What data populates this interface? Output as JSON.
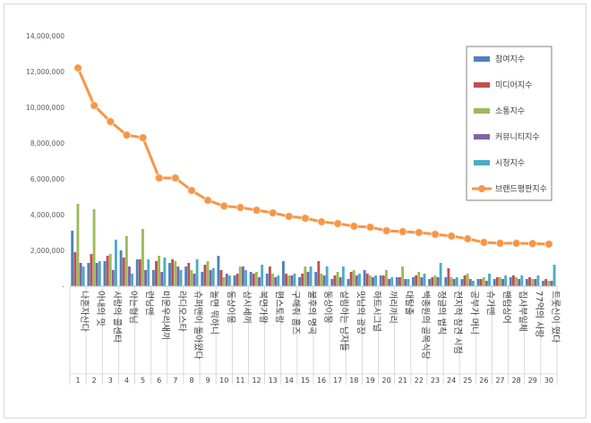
{
  "chart_data": {
    "type": "bar",
    "title": "",
    "xlabel": "",
    "ylabel": "",
    "ylim": [
      0,
      14000000
    ],
    "y_ticks": [
      "-",
      "2,000,000",
      "4,000,000",
      "6,000,000",
      "8,000,000",
      "10,000,000",
      "12,000,000",
      "14,000,000"
    ],
    "grid": false,
    "legend_position": "top-right",
    "index_labels": [
      "1",
      "2",
      "3",
      "4",
      "5",
      "6",
      "7",
      "8",
      "9",
      "10",
      "11",
      "12",
      "13",
      "14",
      "15",
      "16",
      "17",
      "18",
      "19",
      "20",
      "21",
      "22",
      "23",
      "24",
      "25",
      "26",
      "27",
      "28",
      "29",
      "30"
    ],
    "categories": [
      "나혼자산다",
      "아내의 맛",
      "사랑의 콜센타",
      "아는형님",
      "런닝맨",
      "미운우리새끼",
      "라디오스타",
      "슈퍼맨이 돌아왔다",
      "놀면 뭐하니",
      "동상이몽",
      "삼시세끼",
      "복면가왕",
      "편스토랑",
      "구해줘 홈즈",
      "불후의 명곡",
      "동상이몽",
      "살림하는 남자들",
      "맛남의 광장",
      "하트시그널",
      "끼리끼리",
      "대탈출",
      "백종원의 골목식당",
      "정글의 법칙",
      "전지적 참견 시점",
      "공부가 머니",
      "슈가맨",
      "팬텀싱어",
      "집사부일체",
      "77억의 사랑",
      "트롯신이 떴다"
    ],
    "series": [
      {
        "name": "참여지수",
        "color": "#4f81bd",
        "type": "bar",
        "values": [
          3100000,
          1300000,
          1400000,
          2000000,
          1500000,
          900000,
          1300000,
          1100000,
          800000,
          1700000,
          600000,
          800000,
          700000,
          1400000,
          500000,
          800000,
          400000,
          400000,
          900000,
          600000,
          500000,
          500000,
          400000,
          500000,
          400000,
          400000,
          400000,
          500000,
          400000,
          300000
        ]
      },
      {
        "name": "미디어지수",
        "color": "#c0504d",
        "type": "bar",
        "values": [
          1900000,
          1800000,
          1700000,
          1600000,
          1500000,
          1400000,
          1500000,
          1300000,
          1200000,
          900000,
          700000,
          700000,
          1100000,
          700000,
          700000,
          1400000,
          600000,
          800000,
          700000,
          600000,
          500000,
          600000,
          500000,
          1000000,
          600000,
          400000,
          500000,
          600000,
          500000,
          400000
        ]
      },
      {
        "name": "소통지수",
        "color": "#9bbb59",
        "type": "bar",
        "values": [
          4600000,
          4300000,
          1800000,
          2800000,
          3200000,
          1700000,
          1400000,
          900000,
          1400000,
          500000,
          1100000,
          800000,
          700000,
          600000,
          1100000,
          700000,
          800000,
          900000,
          600000,
          900000,
          1100000,
          800000,
          600000,
          500000,
          700000,
          500000,
          500000,
          500000,
          400000,
          300000
        ]
      },
      {
        "name": "커뮤니티지수",
        "color": "#8064a2",
        "type": "bar",
        "values": [
          1300000,
          1300000,
          900000,
          1100000,
          900000,
          800000,
          1100000,
          700000,
          900000,
          700000,
          1100000,
          500000,
          500000,
          600000,
          800000,
          600000,
          500000,
          600000,
          500000,
          400000,
          400000,
          500000,
          500000,
          400000,
          400000,
          300000,
          400000,
          400000,
          400000,
          300000
        ]
      },
      {
        "name": "시청지수",
        "color": "#4bacc6",
        "type": "bar",
        "values": [
          1100000,
          1400000,
          2600000,
          700000,
          1500000,
          1600000,
          900000,
          1500000,
          1000000,
          600000,
          900000,
          1200000,
          600000,
          700000,
          1100000,
          1100000,
          1100000,
          700000,
          600000,
          500000,
          400000,
          700000,
          1300000,
          500000,
          300000,
          700000,
          600000,
          600000,
          600000,
          1200000
        ]
      },
      {
        "name": "브랜드평판지수",
        "color": "#f79646",
        "type": "line",
        "values": [
          12200000,
          10100000,
          9200000,
          8450000,
          8300000,
          6050000,
          6050000,
          5350000,
          4800000,
          4480000,
          4400000,
          4250000,
          4100000,
          3900000,
          3800000,
          3600000,
          3500000,
          3350000,
          3300000,
          3100000,
          3050000,
          3000000,
          2900000,
          2800000,
          2650000,
          2450000,
          2400000,
          2400000,
          2380000,
          2350000
        ]
      }
    ]
  }
}
